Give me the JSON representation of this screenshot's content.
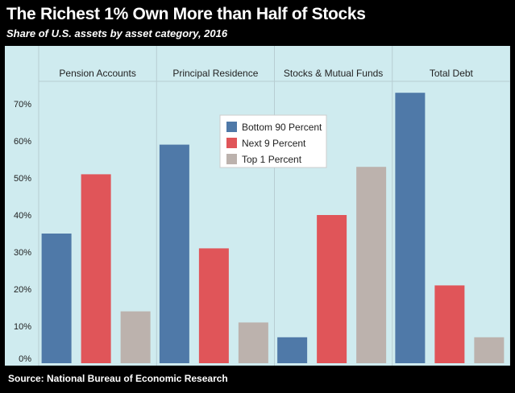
{
  "title": "The Richest 1% Own More than Half of Stocks",
  "subtitle": "Share of U.S. assets by asset category, 2016",
  "source": "Source: National Bureau of Economic Research",
  "colors": {
    "background": "#000000",
    "plot_background": "#cfebef",
    "bottom90": "#4f79a8",
    "next9": "#e05559",
    "top1": "#bcb2ad"
  },
  "chart_data": {
    "type": "bar",
    "title": "The Richest 1% Own More than Half of Stocks",
    "subtitle": "Share of U.S. assets by asset category, 2016",
    "categories": [
      "Pension Accounts",
      "Principal Residence",
      "Stocks & Mutual Funds",
      "Total Debt"
    ],
    "series": [
      {
        "name": "Bottom 90 Percent",
        "color": "#4f79a8",
        "values": [
          35,
          59,
          7,
          73
        ]
      },
      {
        "name": "Next 9 Percent",
        "color": "#e05559",
        "values": [
          51,
          31,
          40,
          21
        ]
      },
      {
        "name": "Top 1 Percent",
        "color": "#bcb2ad",
        "values": [
          14,
          11,
          53,
          7
        ]
      }
    ],
    "yticks": [
      0,
      10,
      20,
      30,
      40,
      50,
      60,
      70
    ],
    "ytick_labels": [
      "0%",
      "10%",
      "20%",
      "30%",
      "40%",
      "50%",
      "60%",
      "70%"
    ],
    "ylim": [
      0,
      75
    ],
    "grid": false,
    "legend_position": "top-center"
  }
}
